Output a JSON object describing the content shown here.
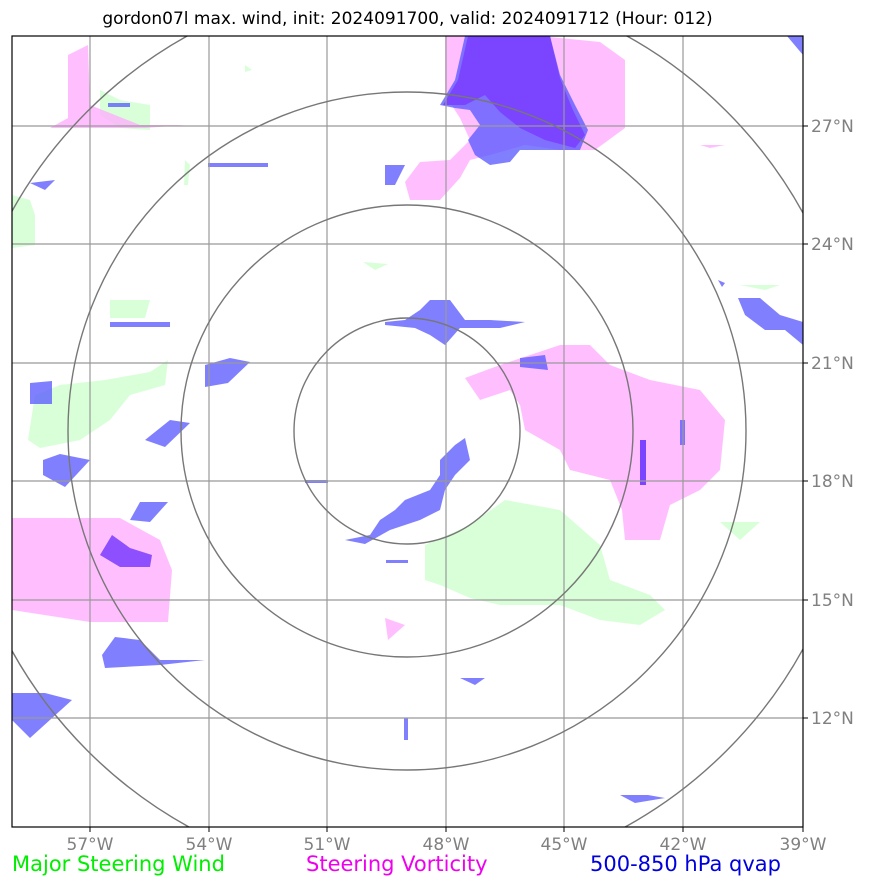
{
  "title": "gordon07l max. wind, init: 2024091700, valid: 2024091712 (Hour: 012)",
  "lon_labels": [
    "57°W",
    "54°W",
    "51°W",
    "48°W",
    "45°W",
    "42°W",
    "39°W"
  ],
  "lat_labels": [
    "27°N",
    "24°N",
    "21°N",
    "18°N",
    "15°N",
    "12°N"
  ],
  "legend": {
    "green": "Major Steering Wind",
    "magenta": "Steering Vorticity",
    "blue": "500-850 hPa qvap"
  },
  "colors": {
    "steering_wind": "#ccffcc",
    "vorticity": "#ffaaff",
    "qvap": "#5555ff",
    "qvap_dark": "#7a3cff",
    "grid": "#999999",
    "rings": "#777777",
    "legend_green": "#00ee00",
    "legend_magenta": "#ee00ee",
    "legend_blue": "#0000dd"
  },
  "center": {
    "lat": "19.4°N",
    "lon": "49°W"
  }
}
